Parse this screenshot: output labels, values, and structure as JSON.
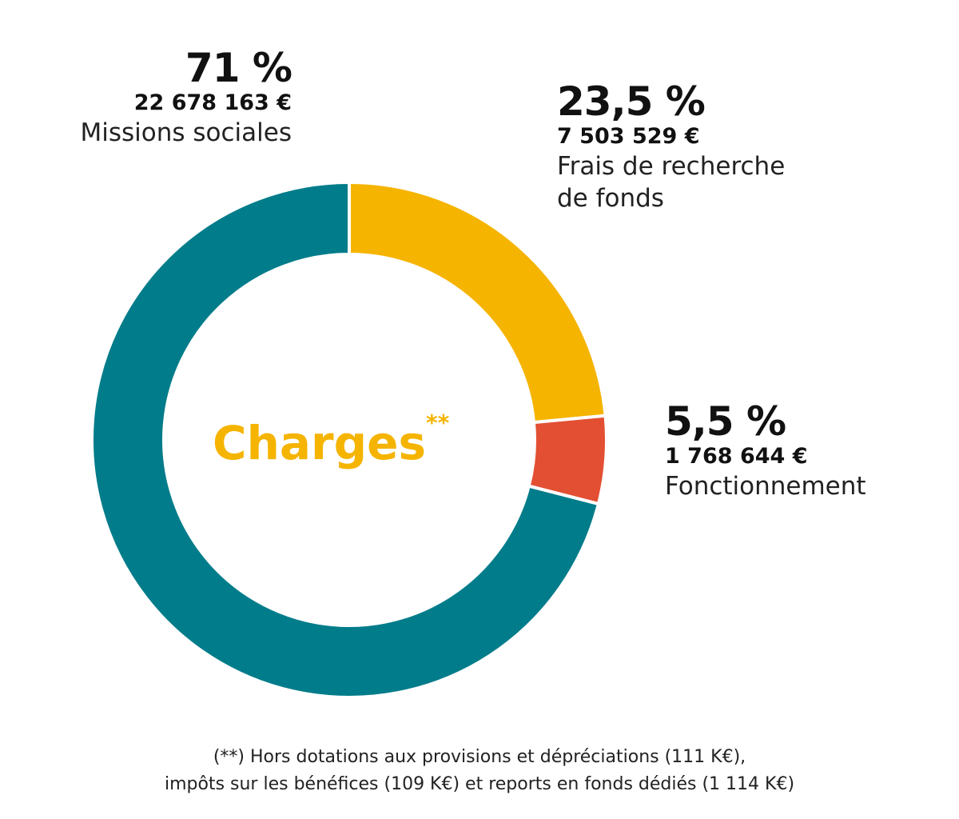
{
  "chart_data": {
    "type": "pie",
    "variant": "donut",
    "center_title": "Charges",
    "center_title_marker": "**",
    "slices": [
      {
        "percent_label": "71 %",
        "value": 71,
        "amount": "22 678 163 €",
        "label": "Missions sociales",
        "color": "#007C8A"
      },
      {
        "percent_label": "23,5 %",
        "value": 23.5,
        "amount": "7 503 529 €",
        "label": "Frais de recherche de fonds",
        "label_lines": [
          "Frais de recherche",
          "de fonds"
        ],
        "color": "#F5B400"
      },
      {
        "percent_label": "5,5 %",
        "value": 5.5,
        "amount": "1 768 644 €",
        "label": "Fonctionnement",
        "color": "#E34F32"
      }
    ],
    "footnote_lines": [
      "(**) Hors dotations aux provisions et dépréciations (111 K€),",
      "impôts sur les bénéfices (109 K€) et reports en fonds dédiés (1 114 K€)"
    ]
  }
}
